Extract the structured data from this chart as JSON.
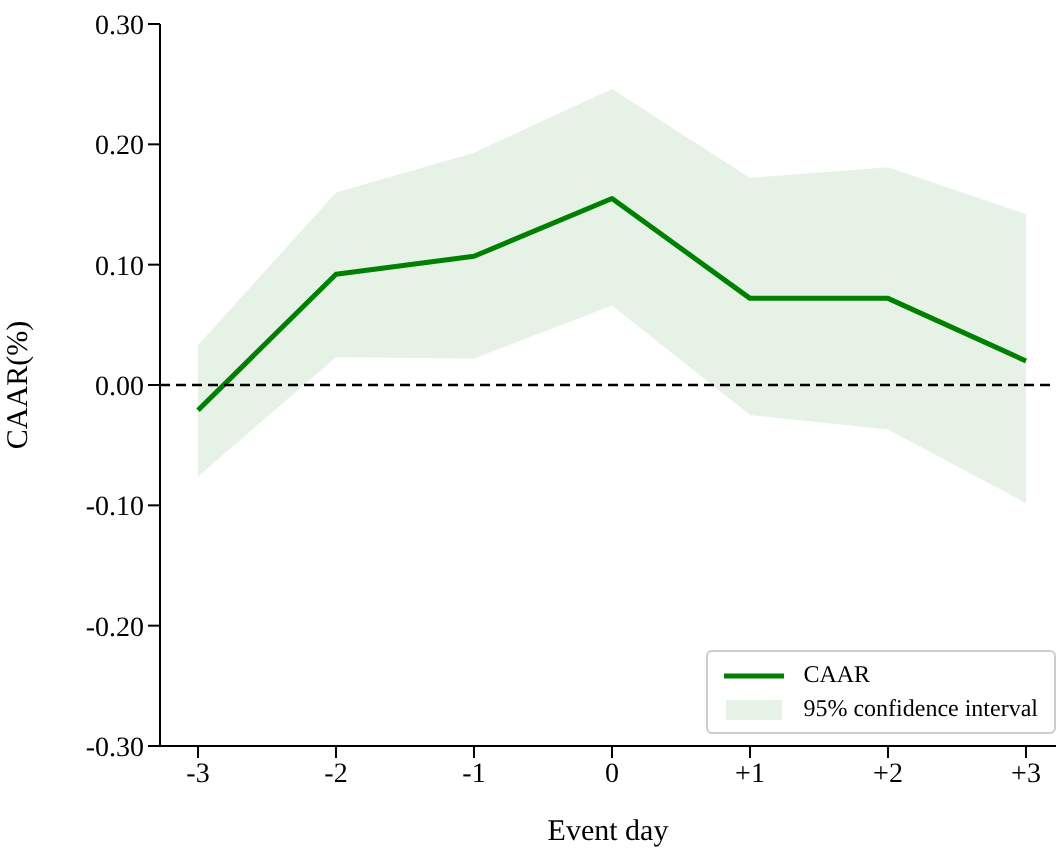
{
  "chart_data": {
    "type": "line",
    "xlabel": "Event day",
    "ylabel": "CAAR(%)",
    "categories": [
      "-3",
      "-2",
      "-1",
      "0",
      "+1",
      "+2",
      "+3"
    ],
    "series": [
      {
        "name": "CAAR",
        "color": "#008000",
        "values": [
          -0.021,
          0.092,
          0.107,
          0.155,
          0.072,
          0.072,
          0.02
        ],
        "lower": [
          -0.076,
          0.023,
          0.022,
          0.066,
          -0.025,
          -0.037,
          -0.098
        ],
        "upper": [
          0.033,
          0.16,
          0.193,
          0.246,
          0.172,
          0.181,
          0.142
        ]
      }
    ],
    "annotations": [
      "95% confidence interval"
    ],
    "ylim": [
      -0.3,
      0.3
    ],
    "yticks": [
      {
        "value": -0.3,
        "label": "-0.30"
      },
      {
        "value": -0.2,
        "label": "-0.20"
      },
      {
        "value": -0.1,
        "label": "-0.10"
      },
      {
        "value": 0,
        "label": "0.00"
      },
      {
        "value": 0.1,
        "label": "0.10"
      },
      {
        "value": 0.2,
        "label": "0.20"
      },
      {
        "value": 0.3,
        "label": "0.30"
      }
    ],
    "ref_lines": [
      {
        "axis": "y",
        "value": 0,
        "color": "#000000",
        "line_style": "dashed"
      }
    ],
    "legend": "bottom right",
    "grid": false,
    "line_style": "solid",
    "marker": "none"
  }
}
